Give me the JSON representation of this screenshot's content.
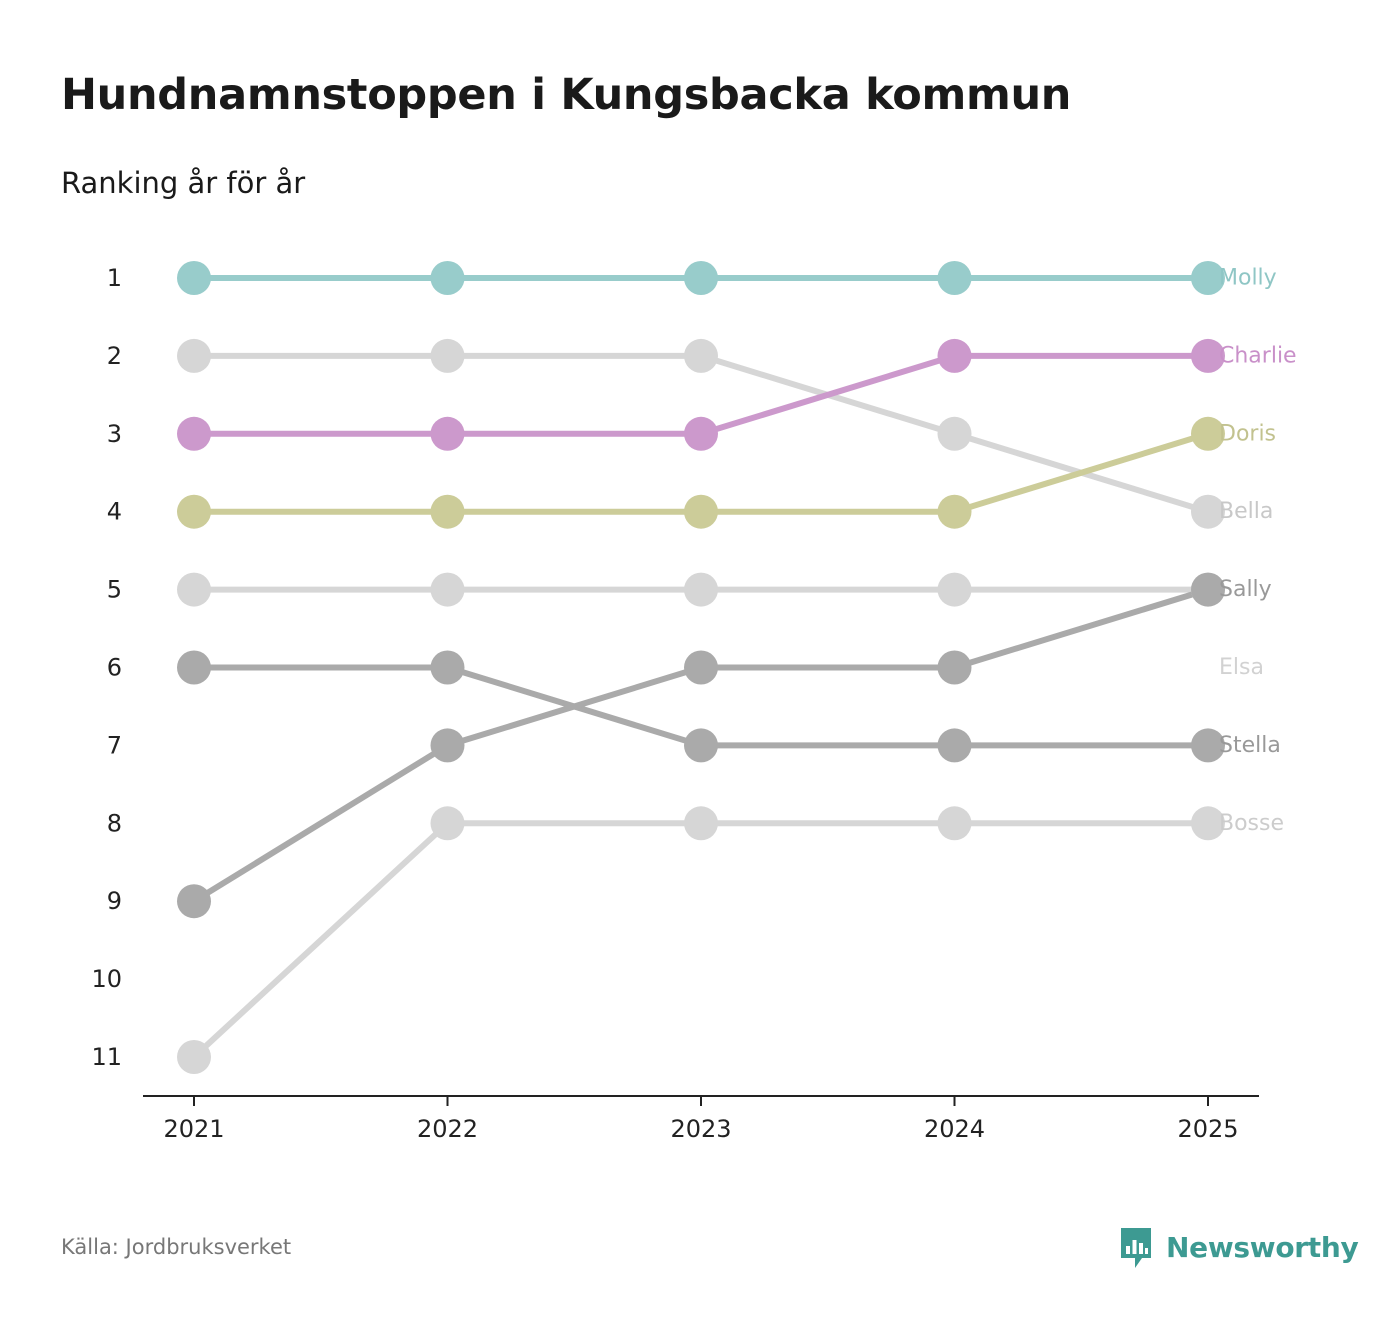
{
  "header": {
    "title": "Hundnamnstoppen i Kungsbacka kommun",
    "subtitle": "Ranking år för år"
  },
  "footer": {
    "source": "Källa: Jordbruksverket",
    "brand": "Newsworthy"
  },
  "colors": {
    "molly": "#98cccb",
    "charlie": "#cc99cc",
    "doris": "#cccc99",
    "light_gray": "#d6d6d6",
    "dark_gray": "#aaaaaa",
    "axis": "#222222",
    "brand": "#3d9a92"
  },
  "chart_data": {
    "type": "line",
    "title": "Hundnamnstoppen i Kungsbacka kommun",
    "subtitle": "Ranking år för år",
    "xlabel": "",
    "ylabel": "",
    "x": [
      "2021",
      "2022",
      "2023",
      "2024",
      "2025"
    ],
    "ylim": [
      1,
      11
    ],
    "y_ticks": [
      1,
      2,
      3,
      4,
      5,
      6,
      7,
      8,
      9,
      10,
      11
    ],
    "y_inverted": true,
    "grid": false,
    "series": [
      {
        "name": "Bosse",
        "values": [
          11,
          8,
          8,
          8,
          8
        ],
        "color": "#d6d6d6",
        "label_color": "#cccccc"
      },
      {
        "name": "Bella",
        "values": [
          2,
          2,
          2,
          3,
          4
        ],
        "color": "#d6d6d6",
        "label_color": "#c8c8c8"
      },
      {
        "name": "Elsa",
        "values": [
          5,
          5,
          5,
          5,
          5
        ],
        "color": "#d6d6d6",
        "label_color": "#d2d2d2",
        "label_rank": 6
      },
      {
        "name": "Stella",
        "values": [
          6,
          6,
          7,
          7,
          7
        ],
        "color": "#aaaaaa",
        "label_color": "#999999"
      },
      {
        "name": "Sally",
        "values": [
          9,
          7,
          6,
          6,
          5
        ],
        "color": "#aaaaaa",
        "label_color": "#999999"
      },
      {
        "name": "Doris",
        "values": [
          4,
          4,
          4,
          4,
          3
        ],
        "color": "#cccc99",
        "label_color": "#c2c28f"
      },
      {
        "name": "Charlie",
        "values": [
          3,
          3,
          3,
          2,
          2
        ],
        "color": "#cc99cc",
        "label_color": "#c990c9"
      },
      {
        "name": "Molly",
        "values": [
          1,
          1,
          1,
          1,
          1
        ],
        "color": "#98cccb",
        "label_color": "#8fc6c5"
      }
    ]
  }
}
